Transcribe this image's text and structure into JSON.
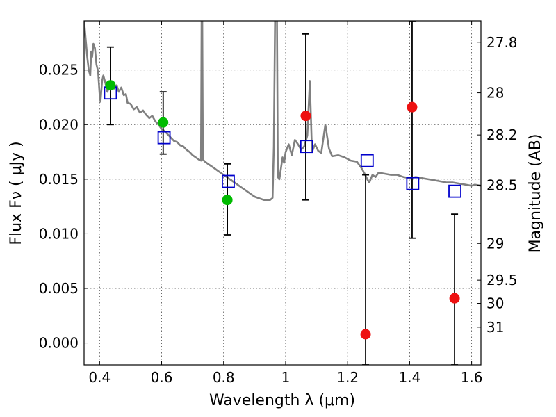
{
  "chart_data": {
    "type": "scatter",
    "xlabel": "Wavelength  λ (μm)",
    "ylabel": "Flux  Fν  ( μJy )",
    "y2label": "Magnitude (AB)",
    "xlim": [
      0.35,
      1.63
    ],
    "ylim": [
      -0.002,
      0.0295
    ],
    "grid": true,
    "x_ticks": [
      {
        "v": 0.4,
        "label": "0.4"
      },
      {
        "v": 0.6,
        "label": "0.6"
      },
      {
        "v": 0.8,
        "label": "0.8"
      },
      {
        "v": 1.0,
        "label": "1"
      },
      {
        "v": 1.2,
        "label": "1.2"
      },
      {
        "v": 1.4,
        "label": "1.4"
      },
      {
        "v": 1.6,
        "label": "1.6"
      }
    ],
    "y_ticks": [
      {
        "v": 0.0,
        "label": "0.000"
      },
      {
        "v": 0.005,
        "label": "0.005"
      },
      {
        "v": 0.01,
        "label": "0.010"
      },
      {
        "v": 0.015,
        "label": "0.015"
      },
      {
        "v": 0.02,
        "label": "0.020"
      },
      {
        "v": 0.025,
        "label": "0.025"
      }
    ],
    "y2_ticks": [
      {
        "mag": 27.8,
        "label": "27.8"
      },
      {
        "mag": 28,
        "label": "28"
      },
      {
        "mag": 28.2,
        "label": "28.2"
      },
      {
        "mag": 28.5,
        "label": "28.5"
      },
      {
        "mag": 29,
        "label": "29"
      },
      {
        "mag": 29.5,
        "label": "29.5"
      },
      {
        "mag": 30,
        "label": "30"
      },
      {
        "mag": 31,
        "label": "31"
      }
    ],
    "colors": {
      "template": "#808080",
      "model": "#0000cc",
      "detected": "#00bb00",
      "upper": "#ee1111",
      "errorbar": "#000000"
    },
    "template_spectrum": [
      [
        0.35,
        0.0295
      ],
      [
        0.36,
        0.0262
      ],
      [
        0.365,
        0.025
      ],
      [
        0.37,
        0.0245
      ],
      [
        0.373,
        0.0267
      ],
      [
        0.376,
        0.0262
      ],
      [
        0.38,
        0.0274
      ],
      [
        0.385,
        0.027
      ],
      [
        0.39,
        0.0255
      ],
      [
        0.395,
        0.0249
      ],
      [
        0.4,
        0.0228
      ],
      [
        0.403,
        0.0221
      ],
      [
        0.408,
        0.024
      ],
      [
        0.412,
        0.0245
      ],
      [
        0.418,
        0.0239
      ],
      [
        0.425,
        0.023
      ],
      [
        0.432,
        0.0235
      ],
      [
        0.44,
        0.0239
      ],
      [
        0.448,
        0.0233
      ],
      [
        0.455,
        0.0236
      ],
      [
        0.462,
        0.023
      ],
      [
        0.47,
        0.0234
      ],
      [
        0.478,
        0.0227
      ],
      [
        0.485,
        0.0228
      ],
      [
        0.49,
        0.022
      ],
      [
        0.5,
        0.0219
      ],
      [
        0.51,
        0.0214
      ],
      [
        0.52,
        0.0216
      ],
      [
        0.53,
        0.0211
      ],
      [
        0.54,
        0.0213
      ],
      [
        0.55,
        0.0209
      ],
      [
        0.56,
        0.0206
      ],
      [
        0.57,
        0.0208
      ],
      [
        0.58,
        0.0203
      ],
      [
        0.59,
        0.02
      ],
      [
        0.6,
        0.0196
      ],
      [
        0.61,
        0.0194
      ],
      [
        0.62,
        0.0191
      ],
      [
        0.63,
        0.0188
      ],
      [
        0.64,
        0.0185
      ],
      [
        0.65,
        0.0184
      ],
      [
        0.66,
        0.0181
      ],
      [
        0.67,
        0.018
      ],
      [
        0.68,
        0.0177
      ],
      [
        0.69,
        0.0175
      ],
      [
        0.7,
        0.0172
      ],
      [
        0.71,
        0.017
      ],
      [
        0.72,
        0.0168
      ],
      [
        0.727,
        0.0167
      ],
      [
        0.729,
        0.03
      ],
      [
        0.731,
        0.03
      ],
      [
        0.733,
        0.0168
      ],
      [
        0.74,
        0.0166
      ],
      [
        0.75,
        0.0164
      ],
      [
        0.76,
        0.0162
      ],
      [
        0.77,
        0.016
      ],
      [
        0.78,
        0.0158
      ],
      [
        0.79,
        0.0156
      ],
      [
        0.8,
        0.0154
      ],
      [
        0.81,
        0.0152
      ],
      [
        0.82,
        0.015
      ],
      [
        0.83,
        0.0148
      ],
      [
        0.84,
        0.0146
      ],
      [
        0.85,
        0.0144
      ],
      [
        0.86,
        0.0142
      ],
      [
        0.87,
        0.014
      ],
      [
        0.88,
        0.0138
      ],
      [
        0.89,
        0.0136
      ],
      [
        0.9,
        0.0134
      ],
      [
        0.91,
        0.0133
      ],
      [
        0.92,
        0.0132
      ],
      [
        0.93,
        0.0131
      ],
      [
        0.94,
        0.0131
      ],
      [
        0.95,
        0.0131
      ],
      [
        0.958,
        0.0133
      ],
      [
        0.962,
        0.018
      ],
      [
        0.964,
        0.024
      ],
      [
        0.966,
        0.03
      ],
      [
        0.972,
        0.03
      ],
      [
        0.975,
        0.0152
      ],
      [
        0.98,
        0.015
      ],
      [
        0.985,
        0.016
      ],
      [
        0.99,
        0.017
      ],
      [
        0.995,
        0.0165
      ],
      [
        1.0,
        0.0175
      ],
      [
        1.01,
        0.0182
      ],
      [
        1.02,
        0.0172
      ],
      [
        1.03,
        0.0186
      ],
      [
        1.04,
        0.0182
      ],
      [
        1.05,
        0.0177
      ],
      [
        1.06,
        0.018
      ],
      [
        1.07,
        0.019
      ],
      [
        1.078,
        0.024
      ],
      [
        1.085,
        0.0175
      ],
      [
        1.095,
        0.0182
      ],
      [
        1.105,
        0.0176
      ],
      [
        1.115,
        0.0174
      ],
      [
        1.128,
        0.02
      ],
      [
        1.14,
        0.0178
      ],
      [
        1.15,
        0.0171
      ],
      [
        1.17,
        0.0172
      ],
      [
        1.19,
        0.017
      ],
      [
        1.21,
        0.0167
      ],
      [
        1.23,
        0.0166
      ],
      [
        1.245,
        0.016
      ],
      [
        1.255,
        0.0155
      ],
      [
        1.265,
        0.0149
      ],
      [
        1.27,
        0.0147
      ],
      [
        1.28,
        0.0154
      ],
      [
        1.29,
        0.0152
      ],
      [
        1.3,
        0.0156
      ],
      [
        1.32,
        0.0155
      ],
      [
        1.34,
        0.0154
      ],
      [
        1.36,
        0.0154
      ],
      [
        1.38,
        0.0152
      ],
      [
        1.4,
        0.0151
      ],
      [
        1.42,
        0.0152
      ],
      [
        1.44,
        0.0151
      ],
      [
        1.46,
        0.015
      ],
      [
        1.48,
        0.0149
      ],
      [
        1.5,
        0.0148
      ],
      [
        1.52,
        0.0147
      ],
      [
        1.54,
        0.0147
      ],
      [
        1.56,
        0.0146
      ],
      [
        1.58,
        0.0145
      ],
      [
        1.6,
        0.0144
      ],
      [
        1.61,
        0.0145
      ],
      [
        1.63,
        0.0144
      ]
    ],
    "model_points": [
      {
        "x": 0.435,
        "y": 0.0229
      },
      {
        "x": 0.608,
        "y": 0.0188
      },
      {
        "x": 0.815,
        "y": 0.0148
      },
      {
        "x": 1.068,
        "y": 0.018
      },
      {
        "x": 1.263,
        "y": 0.0167
      },
      {
        "x": 1.41,
        "y": 0.0146
      },
      {
        "x": 1.546,
        "y": 0.0139
      }
    ],
    "detected_points": [
      {
        "x": 0.435,
        "y": 0.0236,
        "lo": 0.02,
        "hi": 0.0271
      },
      {
        "x": 0.605,
        "y": 0.0202,
        "lo": 0.0173,
        "hi": 0.023
      },
      {
        "x": 0.812,
        "y": 0.0131,
        "lo": 0.0099,
        "hi": 0.0164
      }
    ],
    "upper_limit_points": [
      {
        "x": 1.065,
        "y": 0.0208,
        "lo": 0.0131,
        "hi": 0.0283
      },
      {
        "x": 1.258,
        "y": 0.0008,
        "lo": -0.002,
        "hi": 0.0154
      },
      {
        "x": 1.408,
        "y": 0.0216,
        "lo": 0.0096,
        "hi": 0.0295
      },
      {
        "x": 1.545,
        "y": 0.0041,
        "lo": -0.002,
        "hi": 0.0118
      }
    ]
  }
}
